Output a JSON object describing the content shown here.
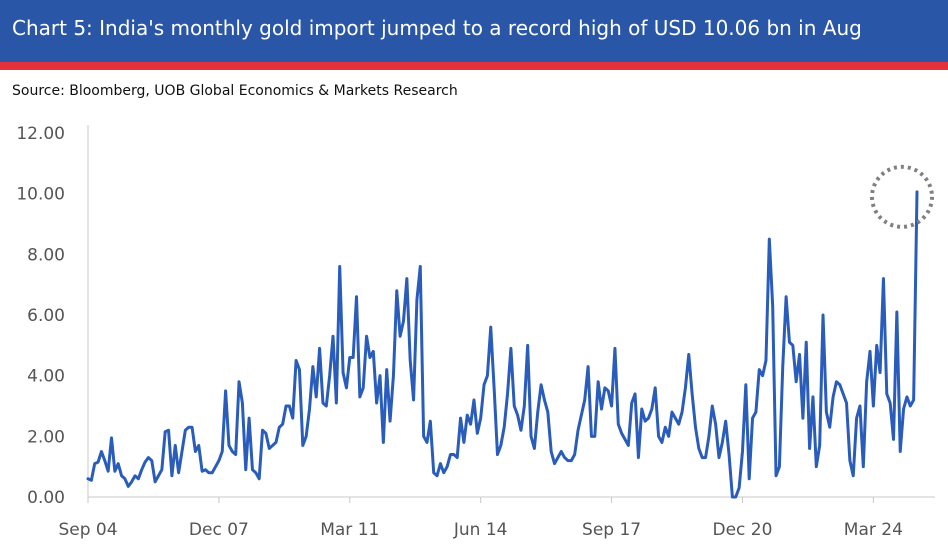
{
  "header": {
    "title": "Chart 5: India's monthly gold import jumped to a record high of USD 10.06 bn in Aug",
    "source": "Source: Bloomberg, UOB Global Economics & Markets Research"
  },
  "colors": {
    "title_bar": "#2a56a8",
    "accent_rule": "#e3323c",
    "series_line": "#2a5cbc",
    "highlight_circle": "#808080"
  },
  "chart_data": {
    "type": "line",
    "title": "Chart 5: India's monthly gold import jumped to a record high of USD 10.06 bn in Aug",
    "xlabel": "",
    "ylabel": "",
    "ylim": [
      0,
      12
    ],
    "yticks": [
      "0.00",
      "2.00",
      "4.00",
      "6.00",
      "8.00",
      "10.00",
      "12.00"
    ],
    "xticks": [
      "Sep 04",
      "Dec 07",
      "Mar 11",
      "Jun 14",
      "Sep 17",
      "Dec 20",
      "Mar 24"
    ],
    "x_start": "2004-09",
    "x_end": "2024-08",
    "grid": false,
    "legend": "none",
    "annotation": "dotted circle around Aug 2024 record high",
    "series": [
      {
        "values": [
          0.6,
          0.55,
          1.1,
          1.15,
          1.5,
          1.2,
          0.85,
          1.95,
          0.85,
          1.1,
          0.7,
          0.6,
          0.35,
          0.5,
          0.7,
          0.6,
          0.9,
          1.15,
          1.3,
          1.2,
          0.5,
          0.7,
          0.9,
          2.15,
          2.2,
          0.7,
          1.7,
          0.8,
          1.5,
          2.2,
          2.3,
          2.3,
          1.5,
          1.7,
          0.85,
          0.9,
          0.8,
          0.8,
          1.0,
          1.2,
          1.5,
          3.5,
          1.7,
          1.5,
          1.4,
          3.8,
          3.1,
          0.9,
          2.6,
          0.9,
          0.8,
          0.6,
          2.2,
          2.1,
          1.6,
          1.7,
          1.8,
          2.3,
          2.4,
          3.0,
          3.0,
          2.6,
          4.5,
          4.2,
          1.7,
          2.0,
          2.9,
          4.3,
          3.3,
          4.9,
          3.1,
          3.0,
          4.0,
          5.3,
          3.1,
          7.6,
          4.1,
          3.6,
          4.6,
          4.6,
          6.6,
          3.3,
          3.6,
          5.3,
          4.6,
          4.8,
          3.1,
          4.0,
          1.8,
          4.2,
          2.5,
          4.0,
          6.8,
          5.3,
          5.8,
          7.2,
          4.5,
          3.2,
          6.5,
          7.6,
          2.0,
          1.8,
          2.5,
          0.8,
          0.7,
          1.1,
          0.8,
          1.0,
          1.4,
          1.4,
          1.3,
          2.6,
          1.8,
          2.7,
          2.4,
          3.2,
          2.1,
          2.6,
          3.7,
          4.0,
          5.6,
          3.6,
          1.4,
          1.7,
          2.3,
          3.4,
          4.9,
          3.0,
          2.7,
          2.2,
          3.0,
          5.0,
          2.0,
          1.6,
          2.8,
          3.7,
          3.2,
          2.8,
          1.5,
          1.1,
          1.3,
          1.5,
          1.3,
          1.2,
          1.2,
          1.4,
          2.2,
          2.7,
          3.2,
          4.3,
          2.0,
          2.0,
          3.8,
          2.9,
          3.6,
          3.5,
          3.0,
          4.9,
          2.4,
          2.1,
          1.9,
          1.7,
          3.1,
          3.4,
          1.3,
          2.9,
          2.5,
          2.6,
          2.9,
          3.6,
          2.0,
          1.8,
          2.3,
          2.0,
          2.8,
          2.6,
          2.4,
          2.8,
          3.6,
          4.7,
          3.4,
          2.3,
          1.6,
          1.3,
          1.3,
          2.0,
          3.0,
          2.4,
          1.3,
          1.8,
          2.5,
          1.4,
          0.0,
          0.0,
          0.3,
          1.5,
          3.7,
          0.6,
          2.6,
          2.8,
          4.2,
          4.0,
          4.5,
          8.5,
          6.3,
          0.7,
          1.0,
          4.3,
          6.6,
          5.1,
          5.0,
          3.8,
          4.7,
          2.6,
          5.1,
          1.6,
          3.3,
          1.0,
          1.7,
          6.0,
          2.8,
          2.3,
          3.3,
          3.8,
          3.7,
          3.4,
          3.1,
          1.2,
          0.7,
          2.6,
          3.0,
          1.0,
          3.8,
          4.8,
          3.0,
          5.0,
          4.1,
          7.2,
          3.4,
          3.1,
          1.9,
          6.1,
          1.5,
          2.9,
          3.3,
          3.0,
          3.2,
          10.06
        ]
      }
    ]
  }
}
